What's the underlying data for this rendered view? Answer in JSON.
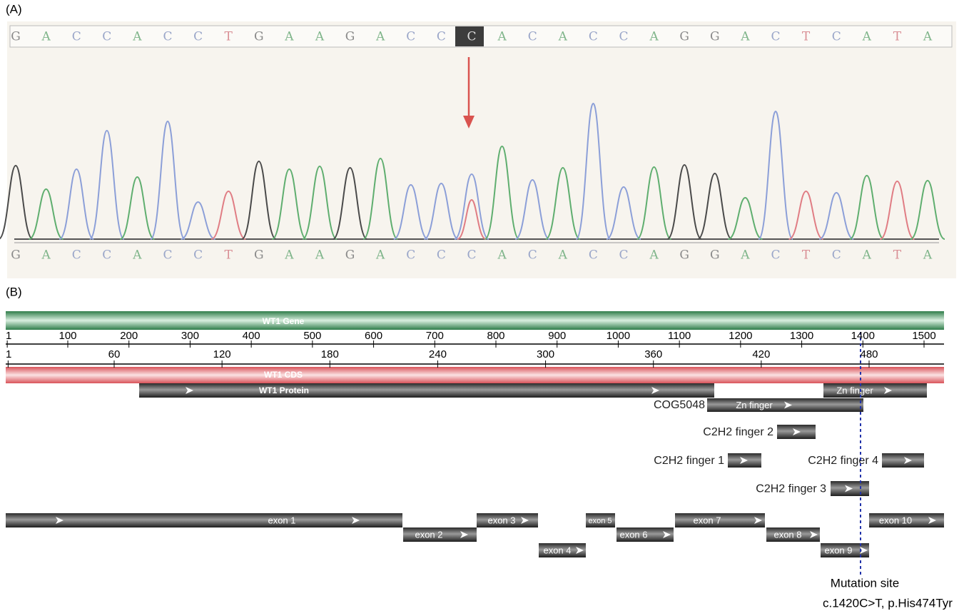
{
  "panel_a": {
    "label": "(A)",
    "sequence_top": [
      "G",
      "A",
      "C",
      "C",
      "A",
      "C",
      "C",
      "T",
      "G",
      "A",
      "A",
      "G",
      "A",
      "C",
      "C",
      "C",
      "A",
      "C",
      "A",
      "C",
      "C",
      "A",
      "G",
      "G",
      "A",
      "C",
      "T",
      "C",
      "A",
      "T",
      "A"
    ],
    "sequence_bottom": [
      "G",
      "A",
      "C",
      "C",
      "A",
      "C",
      "C",
      "T",
      "G",
      "A",
      "A",
      "G",
      "A",
      "C",
      "C",
      "C",
      "A",
      "C",
      "A",
      "C",
      "C",
      "A",
      "G",
      "G",
      "A",
      "C",
      "T",
      "C",
      "A",
      "T",
      "A"
    ]
  },
  "panel_b": {
    "label": "(B)",
    "gene_label": "WT1 Gene",
    "nucleotide_ticks": [
      1,
      100,
      200,
      300,
      400,
      500,
      600,
      700,
      800,
      900,
      1000,
      1100,
      1200,
      1300,
      1400,
      1500
    ],
    "protein_ticks": [
      1,
      60,
      120,
      180,
      240,
      300,
      360,
      420,
      480
    ],
    "cds_label": "WT1 CDS",
    "protein_label": "WT1 Protein",
    "features": [
      {
        "label": "Zn finger"
      },
      {
        "label": "COG5048"
      },
      {
        "label": "Zn finger"
      },
      {
        "label": "C2H2 finger 2"
      },
      {
        "label": "C2H2 finger 1"
      },
      {
        "label": "C2H2 finger 4"
      },
      {
        "label": "C2H2 finger 3"
      }
    ],
    "exons": [
      "exon 1",
      "exon 2",
      "exon 3",
      "exon 4",
      "exon 5",
      "exon 6",
      "exon 7",
      "exon 8",
      "exon 9",
      "exon 10"
    ],
    "mutation": {
      "title": "Mutation site",
      "description": "c.1420C>T, p.His474Tyr"
    }
  }
}
